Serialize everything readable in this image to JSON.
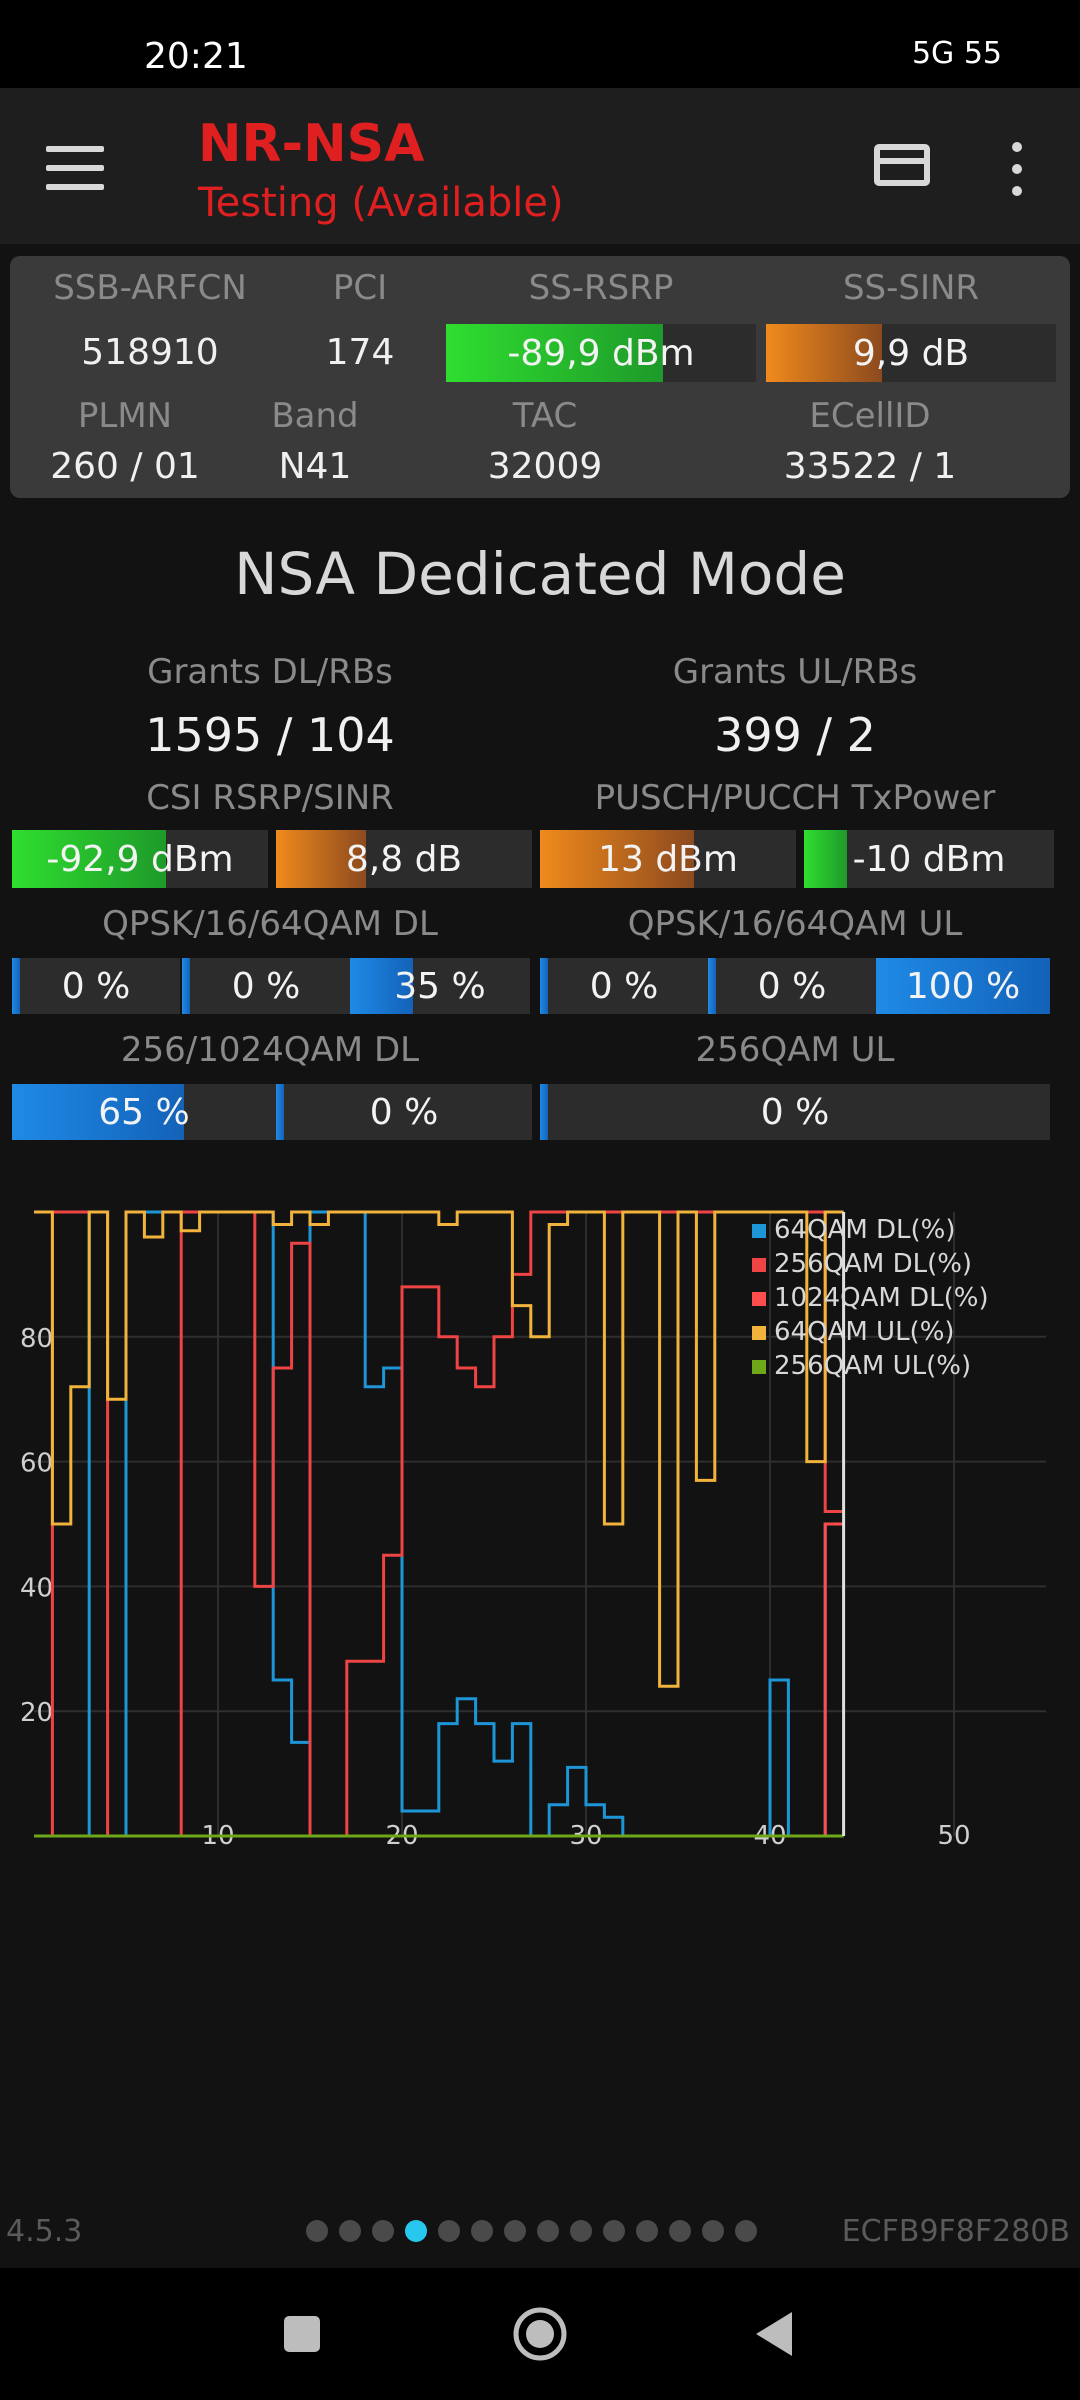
{
  "status_bar": {
    "time": "20:21",
    "right_text": "5G 55"
  },
  "app_bar": {
    "title": "NR-NSA",
    "subtitle": "Testing (Available)"
  },
  "cell": {
    "ssb_arfcn_label": "SSB-ARFCN",
    "ssb_arfcn": "518910",
    "pci_label": "PCI",
    "pci": "174",
    "ss_rsrp_label": "SS-RSRP",
    "ss_rsrp": "-89,9 dBm",
    "ss_rsrp_fill": 0.7,
    "ss_sinr_label": "SS-SINR",
    "ss_sinr": "9,9 dB",
    "ss_sinr_fill": 0.4,
    "plmn_label": "PLMN",
    "plmn": "260 / 01",
    "band_label": "Band",
    "band": "N41",
    "tac_label": "TAC",
    "tac": "32009",
    "ecellid_label": "ECellID",
    "ecellid": "33522 / 1"
  },
  "mode_title": "NSA Dedicated Mode",
  "grants": {
    "dl_label": "Grants DL/RBs",
    "dl": "1595 / 104",
    "ul_label": "Grants UL/RBs",
    "ul": "399 / 2"
  },
  "power": {
    "csi_label": "CSI RSRP/SINR",
    "csi_rsrp": "-92,9 dBm",
    "csi_rsrp_fill": 0.6,
    "csi_sinr": "8,8 dB",
    "csi_sinr_fill": 0.35,
    "pusch_label": "PUSCH/PUCCH TxPower",
    "pusch": "13 dBm",
    "pusch_fill": 0.6,
    "pucch": "-10 dBm",
    "pucch_fill": 0.17
  },
  "qam": {
    "dl_label": "QPSK/16/64QAM DL",
    "dl_qpsk": "0 %",
    "dl_16": "0 %",
    "dl_64": "35 %",
    "dl_64_fill": 0.35,
    "ul_label": "QPSK/16/64QAM UL",
    "ul_qpsk": "0 %",
    "ul_16": "0 %",
    "ul_64": "100 %",
    "ul_64_fill": 1.0,
    "dl_high_label": "256/1024QAM DL",
    "dl_256": "65 %",
    "dl_256_fill": 0.65,
    "dl_1024": "0 %",
    "ul_256_label": "256QAM UL",
    "ul_256": "0 %"
  },
  "chart_data": {
    "type": "line",
    "xlim": [
      0,
      55
    ],
    "ylim": [
      0,
      100
    ],
    "x_ticks": [
      "10",
      "20",
      "30",
      "40",
      "50"
    ],
    "y_ticks": [
      "20",
      "40",
      "60",
      "80"
    ],
    "legend_position": "top-right",
    "grid": true,
    "x": [
      1,
      2,
      3,
      4,
      5,
      6,
      7,
      8,
      9,
      10,
      11,
      12,
      13,
      14,
      15,
      16,
      17,
      18,
      19,
      20,
      21,
      22,
      23,
      24,
      25,
      26,
      27,
      28,
      29,
      30,
      31,
      32,
      33,
      34,
      35,
      36,
      37,
      38,
      39,
      40,
      41,
      42,
      43,
      44
    ],
    "series": [
      {
        "name": "64QAM DL(%)",
        "color": "#1e95d6",
        "values": [
          100,
          100,
          100,
          0,
          0,
          100,
          100,
          100,
          100,
          100,
          100,
          100,
          100,
          25,
          15,
          100,
          100,
          100,
          72,
          75,
          4,
          4,
          18,
          22,
          18,
          12,
          18,
          0,
          5,
          11,
          5,
          3,
          0,
          0,
          0,
          0,
          0,
          0,
          0,
          0,
          25,
          0,
          0,
          50
        ]
      },
      {
        "name": "256QAM DL(%)",
        "color": "#ee4444",
        "values": [
          0,
          100,
          100,
          100,
          0,
          0,
          0,
          0,
          100,
          100,
          100,
          100,
          40,
          75,
          95,
          0,
          0,
          28,
          28,
          45,
          88,
          88,
          80,
          75,
          72,
          80,
          90,
          100,
          100,
          100,
          100,
          100,
          100,
          100,
          100,
          100,
          100,
          100,
          100,
          100,
          100,
          100,
          100,
          52
        ]
      },
      {
        "name": "1024QAM DL(%)",
        "color": "#ff4c4c",
        "values": [
          0,
          0,
          0,
          0,
          0,
          0,
          0,
          0,
          0,
          0,
          0,
          0,
          0,
          0,
          0,
          0,
          0,
          0,
          0,
          0,
          0,
          0,
          0,
          0,
          0,
          0,
          0,
          0,
          0,
          0,
          0,
          0,
          0,
          0,
          0,
          0,
          0,
          0,
          0,
          0,
          0,
          0,
          0,
          50
        ]
      },
      {
        "name": "64QAM UL(%)",
        "color": "#f2b33d",
        "values": [
          100,
          50,
          72,
          100,
          70,
          100,
          96,
          100,
          97,
          100,
          100,
          100,
          100,
          98,
          100,
          98,
          100,
          100,
          100,
          100,
          100,
          100,
          98,
          100,
          100,
          100,
          85,
          80,
          98,
          100,
          100,
          50,
          100,
          100,
          24,
          100,
          57,
          100,
          100,
          100,
          100,
          100,
          60,
          100
        ]
      },
      {
        "name": "256QAM UL(%)",
        "color": "#6ea819",
        "values": [
          0,
          0,
          0,
          0,
          0,
          0,
          0,
          0,
          0,
          0,
          0,
          0,
          0,
          0,
          0,
          0,
          0,
          0,
          0,
          0,
          0,
          0,
          0,
          0,
          0,
          0,
          0,
          0,
          0,
          0,
          0,
          0,
          0,
          0,
          0,
          0,
          0,
          0,
          0,
          0,
          0,
          0,
          0,
          0
        ]
      }
    ]
  },
  "footer": {
    "version": "4.5.3",
    "device_id": "ECFB9F8F280B",
    "page_count": 14,
    "active_page": 4
  }
}
